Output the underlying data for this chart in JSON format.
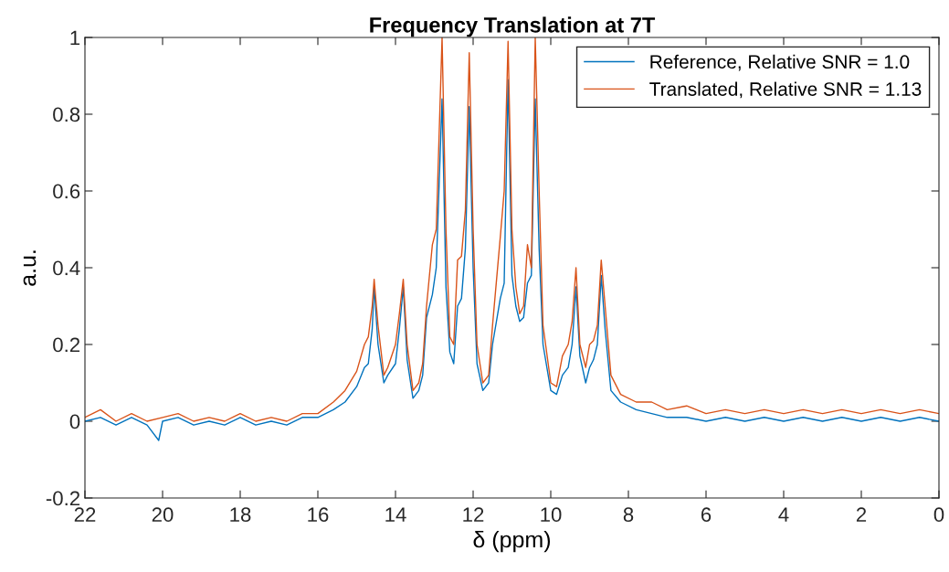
{
  "chart_data": {
    "type": "line",
    "title": "Frequency Translation at 7T",
    "xlabel": "δ (ppm)",
    "ylabel": "a.u.",
    "xlim": [
      22,
      0
    ],
    "xticks": [
      22,
      20,
      18,
      16,
      14,
      12,
      10,
      8,
      6,
      4,
      2,
      0
    ],
    "ylim": [
      -0.2,
      1
    ],
    "yticks": [
      -0.2,
      0,
      0.2,
      0.4,
      0.6,
      0.8,
      1
    ],
    "grid": false,
    "legend": "top right",
    "marker": "none",
    "line_style": "solid",
    "series": [
      {
        "name": "Reference, Relative SNR = 1.0",
        "color": "#0072bd",
        "x": [
          22,
          21.6,
          21.2,
          20.8,
          20.4,
          20.1,
          20.0,
          19.6,
          19.2,
          18.8,
          18.4,
          18.0,
          17.6,
          17.2,
          16.8,
          16.4,
          16.0,
          15.6,
          15.3,
          15.0,
          14.8,
          14.7,
          14.6,
          14.55,
          14.45,
          14.3,
          14.2,
          14.0,
          13.9,
          13.8,
          13.7,
          13.55,
          13.4,
          13.3,
          13.2,
          13.05,
          12.95,
          12.8,
          12.7,
          12.6,
          12.5,
          12.4,
          12.3,
          12.2,
          12.1,
          12.0,
          11.9,
          11.75,
          11.6,
          11.5,
          11.3,
          11.2,
          11.1,
          11.0,
          10.9,
          10.8,
          10.7,
          10.6,
          10.5,
          10.4,
          10.3,
          10.2,
          10.0,
          9.85,
          9.7,
          9.55,
          9.45,
          9.35,
          9.25,
          9.1,
          9.0,
          8.9,
          8.8,
          8.7,
          8.6,
          8.45,
          8.2,
          7.8,
          7.4,
          7.0,
          6.5,
          6.0,
          5.5,
          5.0,
          4.5,
          4.0,
          3.5,
          3.0,
          2.5,
          2.0,
          1.5,
          1.0,
          0.5,
          0
        ],
        "values": [
          0.0,
          0.01,
          -0.01,
          0.01,
          -0.01,
          -0.05,
          0.0,
          0.01,
          -0.01,
          0.0,
          -0.01,
          0.01,
          -0.01,
          0.0,
          -0.01,
          0.01,
          0.01,
          0.03,
          0.05,
          0.09,
          0.14,
          0.15,
          0.24,
          0.35,
          0.2,
          0.1,
          0.12,
          0.15,
          0.24,
          0.35,
          0.16,
          0.06,
          0.08,
          0.12,
          0.27,
          0.33,
          0.4,
          0.84,
          0.35,
          0.18,
          0.15,
          0.3,
          0.32,
          0.45,
          0.82,
          0.4,
          0.15,
          0.08,
          0.1,
          0.2,
          0.32,
          0.36,
          0.89,
          0.38,
          0.3,
          0.26,
          0.27,
          0.36,
          0.38,
          0.84,
          0.45,
          0.2,
          0.08,
          0.07,
          0.12,
          0.14,
          0.2,
          0.35,
          0.17,
          0.1,
          0.14,
          0.16,
          0.2,
          0.38,
          0.24,
          0.08,
          0.05,
          0.03,
          0.02,
          0.01,
          0.01,
          0.0,
          0.01,
          0.0,
          0.01,
          0.0,
          0.01,
          0.0,
          0.01,
          0.0,
          0.01,
          0.0,
          0.01,
          0.0
        ]
      },
      {
        "name": "Translated, Relative SNR = 1.13",
        "color": "#d95319",
        "x": [
          22,
          21.6,
          21.2,
          20.8,
          20.4,
          20.0,
          19.6,
          19.2,
          18.8,
          18.4,
          18.0,
          17.6,
          17.2,
          16.8,
          16.4,
          16.0,
          15.6,
          15.3,
          15.0,
          14.8,
          14.7,
          14.6,
          14.55,
          14.45,
          14.3,
          14.2,
          14.0,
          13.9,
          13.8,
          13.7,
          13.55,
          13.4,
          13.3,
          13.2,
          13.05,
          12.95,
          12.8,
          12.7,
          12.6,
          12.5,
          12.4,
          12.3,
          12.2,
          12.1,
          12.0,
          11.9,
          11.75,
          11.6,
          11.5,
          11.3,
          11.2,
          11.1,
          11.0,
          10.9,
          10.8,
          10.7,
          10.6,
          10.5,
          10.4,
          10.3,
          10.2,
          10.0,
          9.85,
          9.7,
          9.55,
          9.45,
          9.35,
          9.25,
          9.1,
          9.0,
          8.9,
          8.8,
          8.7,
          8.6,
          8.45,
          8.2,
          7.8,
          7.4,
          7.0,
          6.5,
          6.0,
          5.5,
          5.0,
          4.5,
          4.0,
          3.5,
          3.0,
          2.5,
          2.0,
          1.5,
          1.0,
          0.5,
          0
        ],
        "values": [
          0.01,
          0.03,
          0.0,
          0.02,
          0.0,
          0.01,
          0.02,
          0.0,
          0.01,
          0.0,
          0.02,
          0.0,
          0.01,
          0.0,
          0.02,
          0.02,
          0.05,
          0.08,
          0.13,
          0.2,
          0.22,
          0.3,
          0.37,
          0.25,
          0.12,
          0.14,
          0.2,
          0.28,
          0.37,
          0.2,
          0.08,
          0.1,
          0.15,
          0.3,
          0.46,
          0.5,
          1.0,
          0.5,
          0.22,
          0.2,
          0.42,
          0.43,
          0.55,
          0.96,
          0.5,
          0.2,
          0.1,
          0.12,
          0.25,
          0.48,
          0.6,
          0.99,
          0.5,
          0.35,
          0.28,
          0.3,
          0.46,
          0.4,
          1.0,
          0.6,
          0.25,
          0.1,
          0.09,
          0.17,
          0.2,
          0.26,
          0.4,
          0.2,
          0.14,
          0.2,
          0.21,
          0.25,
          0.42,
          0.3,
          0.12,
          0.07,
          0.05,
          0.05,
          0.03,
          0.04,
          0.02,
          0.03,
          0.02,
          0.03,
          0.02,
          0.03,
          0.02,
          0.03,
          0.02,
          0.03,
          0.02,
          0.03,
          0.02
        ]
      }
    ]
  }
}
